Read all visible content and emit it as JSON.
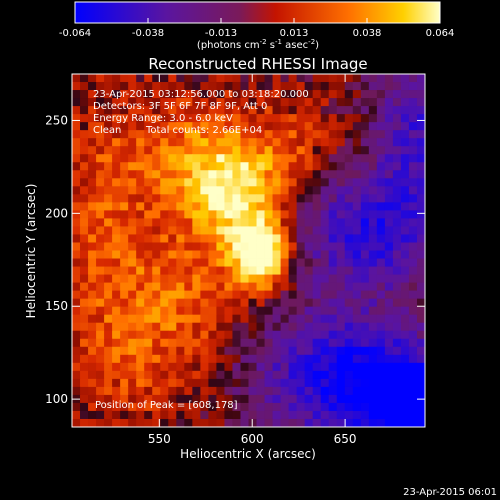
{
  "chart_data": {
    "type": "heatmap",
    "title": "Reconstructed RHESSI Image",
    "xlabel": "Heliocentric X (arcsec)",
    "ylabel": "Heliocentric Y (arcsec)",
    "xlim": [
      503,
      693
    ],
    "ylim": [
      85,
      275
    ],
    "x_ticks": [
      550,
      600,
      650
    ],
    "y_ticks": [
      100,
      150,
      200,
      250
    ],
    "colorbar": {
      "range": [
        -0.064,
        0.064
      ],
      "ticks": [
        "-0.064",
        "-0.038",
        "-0.013",
        "0.013",
        "0.038",
        "0.064"
      ],
      "units_prefix": "(photons cm",
      "units_exp1": "-2",
      "units_mid": " s",
      "units_exp2": "-1",
      "units_mid2": " asec",
      "units_exp3": "-2",
      "units_suffix": ")"
    },
    "peak": {
      "x": 608,
      "y": 178
    },
    "blobs": [
      {
        "x": 605,
        "y": 178,
        "sx": 10,
        "sy": 12,
        "a": 0.08
      },
      {
        "x": 590,
        "y": 210,
        "sx": 16,
        "sy": 20,
        "a": 0.05
      },
      {
        "x": 565,
        "y": 230,
        "sx": 22,
        "sy": 22,
        "a": 0.03
      },
      {
        "x": 620,
        "y": 230,
        "sx": 18,
        "sy": 20,
        "a": 0.02
      },
      {
        "x": 560,
        "y": 160,
        "sx": 30,
        "sy": 25,
        "a": 0.022
      },
      {
        "x": 540,
        "y": 120,
        "sx": 28,
        "sy": 25,
        "a": 0.018
      },
      {
        "x": 520,
        "y": 205,
        "sx": 16,
        "sy": 40,
        "a": 0.02
      },
      {
        "x": 650,
        "y": 112,
        "sx": 35,
        "sy": 25,
        "a": -0.06
      },
      {
        "x": 685,
        "y": 95,
        "sx": 18,
        "sy": 18,
        "a": -0.06
      },
      {
        "x": 662,
        "y": 190,
        "sx": 28,
        "sy": 22,
        "a": -0.05
      },
      {
        "x": 690,
        "y": 245,
        "sx": 18,
        "sy": 30,
        "a": -0.04
      }
    ],
    "base": 0.002
  },
  "annotations": {
    "time_range": "23-Apr-2015 03:12:56.000 to 03:18:20.000",
    "detectors": "Detectors: 3F 5F 6F 7F 8F 9F, Att 0",
    "energy": "Energy Range: 3.0 - 6.0 keV",
    "clean": "Clean",
    "total_counts": "Total counts: 2.66E+04",
    "peak_label": "Position of Peak = [608,178]"
  },
  "footer": {
    "date": "23-Apr-2015 06:01"
  }
}
